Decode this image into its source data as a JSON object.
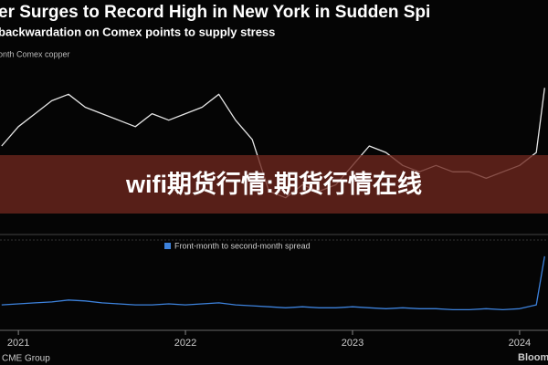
{
  "chart_data": [
    {
      "type": "line",
      "title": "er Surges to Record High in New York in Sudden Spi",
      "subtitle": "backwardation on Comex points to supply stress",
      "x": [
        2020.9,
        2021.0,
        2021.1,
        2021.2,
        2021.3,
        2021.4,
        2021.5,
        2021.6,
        2021.7,
        2021.8,
        2021.9,
        2022.0,
        2022.1,
        2022.2,
        2022.3,
        2022.4,
        2022.5,
        2022.6,
        2022.7,
        2022.8,
        2022.9,
        2023.0,
        2023.1,
        2023.2,
        2023.3,
        2023.4,
        2023.5,
        2023.6,
        2023.7,
        2023.8,
        2023.9,
        2024.0,
        2024.1,
        2024.15
      ],
      "series": [
        {
          "name": "onth Comex copper",
          "color": "#e6e6e6",
          "values": [
            4.2,
            4.5,
            4.7,
            4.9,
            5.0,
            4.8,
            4.7,
            4.6,
            4.5,
            4.7,
            4.6,
            4.7,
            4.8,
            5.0,
            4.6,
            4.3,
            3.5,
            3.4,
            3.6,
            3.5,
            3.6,
            3.9,
            4.2,
            4.1,
            3.9,
            3.8,
            3.9,
            3.8,
            3.8,
            3.7,
            3.8,
            3.9,
            4.1,
            5.1
          ]
        }
      ],
      "xlim": [
        2020.89,
        2024.17
      ],
      "ylim": [
        3.0,
        5.4
      ]
    },
    {
      "type": "line",
      "x": [
        2020.9,
        2021.0,
        2021.1,
        2021.2,
        2021.3,
        2021.4,
        2021.5,
        2021.6,
        2021.7,
        2021.8,
        2021.9,
        2022.0,
        2022.1,
        2022.2,
        2022.3,
        2022.4,
        2022.5,
        2022.6,
        2022.7,
        2022.8,
        2022.9,
        2023.0,
        2023.1,
        2023.2,
        2023.3,
        2023.4,
        2023.5,
        2023.6,
        2023.7,
        2023.8,
        2023.9,
        2024.0,
        2024.1,
        2024.15
      ],
      "series": [
        {
          "name": "Front-month to second-month spread",
          "color": "#3d82dc",
          "values": [
            0.05,
            0.06,
            0.07,
            0.08,
            0.1,
            0.09,
            0.07,
            0.06,
            0.05,
            0.05,
            0.06,
            0.05,
            0.06,
            0.07,
            0.05,
            0.04,
            0.03,
            0.02,
            0.03,
            0.02,
            0.02,
            0.03,
            0.02,
            0.01,
            0.02,
            0.01,
            0.01,
            0.0,
            0.0,
            0.01,
            0.0,
            0.01,
            0.05,
            0.55
          ]
        }
      ],
      "xlim": [
        2020.89,
        2024.17
      ],
      "ylim": [
        -0.1,
        0.7
      ],
      "xticks": [
        2021,
        2022,
        2023,
        2024
      ],
      "source": "CME Group",
      "brand": "Bloom"
    }
  ],
  "overlay_text": "wifi期货行情:期货行情在线"
}
